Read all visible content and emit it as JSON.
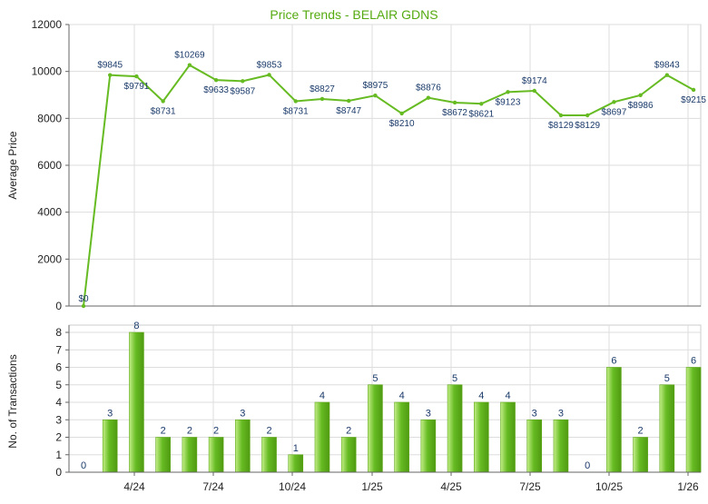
{
  "colors": {
    "accent": "#66bb22",
    "title": "#55aa11",
    "label": "#1a3a6a",
    "grid": "#dddddd",
    "axis": "#666666",
    "bar_light": "#c4ee88",
    "bar_dark": "#4f9a12"
  },
  "chart_data": [
    {
      "type": "line",
      "title": "Price Trends - BELAIR GDNS",
      "xlabel": "",
      "ylabel": "Average Price",
      "ylim": [
        0,
        12000
      ],
      "yticks": [
        "0",
        "2000",
        "4000",
        "6000",
        "8000",
        "10000",
        "12000"
      ],
      "x_tick_labels": [
        "4/24",
        "7/24",
        "10/24",
        "1/25",
        "4/25",
        "7/25",
        "10/25",
        "1/26"
      ],
      "grid": true,
      "points": [
        {
          "value": 0,
          "label": "$0"
        },
        {
          "value": 9845,
          "label": "$9845"
        },
        {
          "value": 9791,
          "label": "$9791"
        },
        {
          "value": 8731,
          "label": "$8731"
        },
        {
          "value": 10269,
          "label": "$10269"
        },
        {
          "value": 9633,
          "label": "$9633"
        },
        {
          "value": 9587,
          "label": "$9587"
        },
        {
          "value": 9853,
          "label": "$9853"
        },
        {
          "value": 8731,
          "label": "$8731"
        },
        {
          "value": 8827,
          "label": "$8827"
        },
        {
          "value": 8747,
          "label": "$8747"
        },
        {
          "value": 8975,
          "label": "$8975"
        },
        {
          "value": 8210,
          "label": "$8210"
        },
        {
          "value": 8876,
          "label": "$8876"
        },
        {
          "value": 8672,
          "label": "$8672"
        },
        {
          "value": 8621,
          "label": "$8621"
        },
        {
          "value": 9123,
          "label": "$9123"
        },
        {
          "value": 9174,
          "label": "$9174"
        },
        {
          "value": 8129,
          "label": "$8129"
        },
        {
          "value": 8129,
          "label": "$8129"
        },
        {
          "value": 8697,
          "label": "$8697"
        },
        {
          "value": 8986,
          "label": "$8986"
        },
        {
          "value": 9843,
          "label": "$9843"
        },
        {
          "value": 9215,
          "label": "$9215"
        }
      ]
    },
    {
      "type": "bar",
      "ylabel": "No. of Transactions",
      "ylim": [
        0,
        8
      ],
      "yticks": [
        "0",
        "1",
        "2",
        "3",
        "4",
        "5",
        "6",
        "7",
        "8"
      ],
      "x_tick_labels": [
        "4/24",
        "7/24",
        "10/24",
        "1/25",
        "4/25",
        "7/25",
        "10/25",
        "1/26"
      ],
      "grid": true,
      "values": [
        0,
        3,
        8,
        2,
        2,
        2,
        3,
        2,
        1,
        4,
        2,
        5,
        4,
        3,
        5,
        4,
        4,
        3,
        3,
        0,
        6,
        2,
        5,
        6
      ]
    }
  ]
}
